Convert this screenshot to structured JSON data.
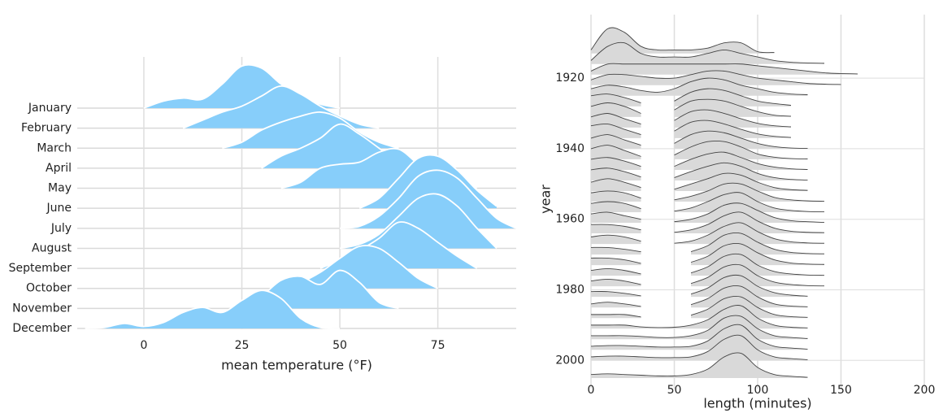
{
  "chart_data": [
    {
      "type": "ridgeline",
      "xlabel": "mean temperature (°F)",
      "categories": [
        "January",
        "February",
        "March",
        "April",
        "May",
        "June",
        "July",
        "August",
        "September",
        "October",
        "November",
        "December"
      ],
      "x": [
        -15,
        -10,
        -5,
        0,
        5,
        10,
        15,
        20,
        25,
        30,
        35,
        40,
        45,
        50,
        55,
        60,
        65,
        70,
        75,
        80,
        85,
        90,
        95
      ],
      "values": [
        [
          null,
          null,
          null,
          0,
          0.35,
          0.5,
          0.45,
          1.2,
          2.1,
          2.0,
          1.2,
          0.6,
          0.2,
          0,
          null,
          null,
          null,
          null,
          null,
          null,
          null,
          null,
          null
        ],
        [
          null,
          null,
          null,
          null,
          null,
          0,
          0.4,
          0.8,
          1.1,
          1.6,
          2.1,
          1.7,
          1.1,
          0.6,
          0.2,
          0,
          null,
          null,
          null,
          null,
          null,
          null,
          null
        ],
        [
          null,
          null,
          null,
          null,
          null,
          null,
          null,
          0,
          0.3,
          0.9,
          1.3,
          1.6,
          1.8,
          1.5,
          0.8,
          0.3,
          0,
          null,
          null,
          null,
          null,
          null,
          null
        ],
        [
          null,
          null,
          null,
          null,
          null,
          null,
          null,
          null,
          null,
          0,
          0.6,
          1.0,
          1.5,
          2.2,
          1.7,
          1.0,
          0.3,
          0,
          null,
          null,
          null,
          null,
          null
        ],
        [
          null,
          null,
          null,
          null,
          null,
          null,
          null,
          null,
          null,
          null,
          0,
          0.3,
          1.0,
          1.2,
          1.3,
          1.8,
          1.95,
          1.2,
          0.5,
          0.1,
          0,
          null,
          null
        ],
        [
          null,
          null,
          null,
          null,
          null,
          null,
          null,
          null,
          null,
          null,
          null,
          null,
          null,
          null,
          0,
          0.5,
          1.5,
          2.5,
          2.6,
          1.9,
          0.9,
          0.1,
          null
        ],
        [
          null,
          null,
          null,
          null,
          null,
          null,
          null,
          null,
          null,
          null,
          null,
          null,
          null,
          0,
          0.1,
          0.6,
          1.5,
          2.6,
          2.9,
          2.5,
          1.5,
          0.5,
          0
        ],
        [
          null,
          null,
          null,
          null,
          null,
          null,
          null,
          null,
          null,
          null,
          null,
          null,
          null,
          0,
          0.2,
          0.7,
          1.6,
          2.5,
          2.7,
          2.1,
          1.0,
          0,
          null
        ],
        [
          null,
          null,
          null,
          null,
          null,
          null,
          null,
          null,
          null,
          null,
          null,
          null,
          0,
          0.4,
          0.9,
          1.5,
          2.3,
          2.0,
          1.3,
          0.6,
          0,
          null,
          null
        ],
        [
          null,
          null,
          null,
          null,
          null,
          null,
          null,
          null,
          null,
          null,
          0,
          0.3,
          0.8,
          1.5,
          2.1,
          2.0,
          1.3,
          0.5,
          0,
          null,
          null,
          null,
          null
        ],
        [
          null,
          null,
          null,
          null,
          null,
          null,
          null,
          null,
          0,
          0.6,
          1.4,
          1.6,
          1.2,
          1.9,
          1.3,
          0.3,
          0,
          null,
          null,
          null,
          null,
          null,
          null
        ],
        [
          0,
          0.05,
          0.25,
          0.1,
          0.3,
          0.8,
          1.05,
          0.8,
          1.4,
          1.9,
          1.5,
          0.5,
          0.05,
          0,
          null,
          null,
          null,
          null,
          null,
          null,
          null,
          null,
          null
        ]
      ],
      "color": "#87cefa",
      "stroke": "#ffffff",
      "xlim": [
        -17,
        95
      ],
      "xticks": [
        0,
        25,
        50,
        75
      ],
      "grid": true
    },
    {
      "type": "ridgeline",
      "xlabel": "length (minutes)",
      "ylabel": "year",
      "y": [
        1913,
        1916,
        1919,
        1922,
        1925,
        1928,
        1931,
        1934,
        1937,
        1940,
        1943,
        1946,
        1949,
        1952,
        1955,
        1958,
        1961,
        1964,
        1967,
        1970,
        1973,
        1976,
        1979,
        1982,
        1985,
        1988,
        1991,
        1994,
        1997,
        2000,
        2005
      ],
      "x": [
        0,
        10,
        20,
        30,
        40,
        50,
        60,
        70,
        80,
        90,
        100,
        110,
        120,
        130,
        140,
        150,
        160
      ],
      "values": [
        [
          1,
          7,
          6,
          2,
          1,
          1,
          1,
          1.5,
          3,
          3,
          0.5,
          0.3,
          null,
          null,
          null,
          null,
          null
        ],
        [
          1,
          5,
          6,
          3,
          2,
          2,
          2,
          3,
          4,
          3,
          2,
          1,
          0.5,
          0.3,
          0.2,
          null,
          null
        ],
        [
          1,
          3,
          3,
          3,
          3,
          3,
          3,
          3,
          3,
          3,
          2.5,
          2,
          1.5,
          1,
          0.5,
          0.3,
          0.2
        ],
        [
          1.5,
          3,
          3,
          2.5,
          2,
          2,
          3,
          4,
          4,
          3,
          2,
          1.5,
          1,
          0.5,
          0.3,
          0.2,
          null
        ],
        [
          2,
          3,
          2.5,
          1.5,
          1,
          2,
          4,
          5,
          4.5,
          3,
          2,
          1,
          0.5,
          0.3,
          null,
          null,
          null
        ],
        [
          3,
          3.5,
          2.5,
          1,
          null,
          1.5,
          4,
          5,
          4.5,
          3,
          1.5,
          0.8,
          0.3,
          null,
          null,
          null,
          null
        ],
        [
          3,
          4,
          3,
          1,
          null,
          2,
          4.5,
          5,
          4.5,
          3,
          1.5,
          0.5,
          0.2,
          null,
          null,
          null,
          null
        ],
        [
          3,
          4,
          2.5,
          1,
          null,
          2,
          4.5,
          5,
          4,
          2.5,
          1.2,
          0.5,
          0.2,
          null,
          null,
          null,
          null
        ],
        [
          3.5,
          4,
          2.5,
          1,
          null,
          2,
          4.5,
          5,
          4,
          2.5,
          1.2,
          0.5,
          0.2,
          null,
          null,
          null,
          null
        ],
        [
          3,
          4,
          2.5,
          1,
          null,
          1.5,
          4,
          5,
          4.5,
          3,
          1.5,
          0.6,
          0.2,
          0.1,
          null,
          null,
          null
        ],
        [
          3,
          4,
          2.5,
          0.8,
          null,
          1.2,
          3.5,
          5,
          5,
          3.5,
          1.5,
          0.6,
          0.2,
          0.1,
          null,
          null,
          null
        ],
        [
          3,
          3.5,
          2.5,
          1,
          null,
          1,
          3,
          4.5,
          5,
          3.5,
          1.8,
          0.8,
          0.3,
          0.1,
          null,
          null,
          null
        ],
        [
          3,
          3.5,
          2.5,
          1,
          null,
          0.8,
          2.5,
          4,
          5,
          4,
          2,
          0.8,
          0.3,
          0.1,
          null,
          null,
          null
        ],
        [
          2.5,
          3.5,
          2.5,
          1,
          null,
          0.5,
          2,
          3.5,
          5,
          4.5,
          2.5,
          1,
          0.4,
          0.2,
          null,
          null,
          null
        ],
        [
          2.5,
          3,
          2.5,
          1,
          null,
          0.5,
          1.5,
          3,
          5,
          5,
          3,
          1.2,
          0.5,
          0.2,
          0.1,
          null,
          null
        ],
        [
          2.5,
          3,
          2.5,
          1,
          null,
          0.3,
          1.2,
          3,
          5,
          5.5,
          3,
          1.2,
          0.5,
          0.2,
          0.1,
          null,
          null
        ],
        [
          2.5,
          3,
          2,
          1,
          null,
          0.3,
          1,
          2.5,
          5,
          5.5,
          3.5,
          1.5,
          0.6,
          0.3,
          0.1,
          null,
          null
        ],
        [
          2.5,
          2.5,
          2,
          1,
          null,
          0.3,
          1,
          2.5,
          5,
          6,
          3.5,
          1.5,
          0.6,
          0.3,
          0.2,
          null,
          null
        ],
        [
          2,
          2.5,
          2,
          0.8,
          null,
          0.2,
          0.8,
          2.5,
          5,
          6,
          3.5,
          1.5,
          0.6,
          0.3,
          0.2,
          null,
          null
        ],
        [
          2,
          2,
          1.5,
          0.8,
          null,
          null,
          0.8,
          2.5,
          5.5,
          6,
          3.5,
          1.5,
          0.6,
          0.3,
          0.2,
          null,
          null
        ],
        [
          2,
          2,
          1.5,
          0.5,
          null,
          null,
          0.8,
          2.5,
          5.5,
          6,
          3.5,
          1.5,
          0.6,
          0.3,
          0.2,
          null,
          null
        ],
        [
          1.5,
          2,
          1.5,
          0.5,
          null,
          null,
          0.8,
          2.5,
          5.5,
          6,
          3,
          1.2,
          0.5,
          0.2,
          0.1,
          null,
          null
        ],
        [
          1.5,
          2,
          1.5,
          0.5,
          null,
          null,
          0.8,
          2.5,
          5.5,
          6,
          3,
          1.2,
          0.5,
          0.2,
          0.1,
          null,
          null
        ],
        [
          1.5,
          1.5,
          1,
          0.3,
          null,
          null,
          0.8,
          2.5,
          5.5,
          6,
          3,
          1.2,
          0.5,
          0.2,
          null,
          null,
          null
        ],
        [
          1,
          1.5,
          1,
          0.3,
          null,
          null,
          0.8,
          2.5,
          5.5,
          6,
          3,
          1,
          0.4,
          0.2,
          null,
          null,
          null
        ],
        [
          1,
          1,
          1,
          0.3,
          null,
          null,
          0.8,
          2.5,
          5.5,
          6,
          3,
          1,
          0.4,
          0.2,
          null,
          null,
          null
        ],
        [
          1,
          1,
          1,
          0.5,
          0.3,
          0.4,
          1,
          2.5,
          5.5,
          6.5,
          3,
          1,
          0.4,
          0.2,
          null,
          null,
          null
        ],
        [
          1,
          1,
          1,
          0.8,
          0.5,
          0.5,
          1,
          2.5,
          6,
          6.5,
          3,
          1,
          0.5,
          0.2,
          null,
          null,
          null
        ],
        [
          1,
          1.2,
          1.2,
          1,
          0.8,
          0.8,
          1,
          2.5,
          6,
          7,
          3,
          1,
          0.5,
          0.2,
          null,
          null,
          null
        ],
        [
          1,
          1.2,
          1.2,
          1,
          0.8,
          0.8,
          1,
          2.5,
          6,
          7,
          3,
          1,
          0.5,
          0.2,
          null,
          null,
          null
        ],
        [
          1,
          1.2,
          1,
          0.8,
          0.6,
          0.6,
          1,
          2.5,
          6,
          7,
          3,
          1,
          0.5,
          0.2,
          null,
          null,
          null
        ]
      ],
      "color": "#d9d9d9",
      "stroke": "#444444",
      "xlim": [
        0,
        200
      ],
      "xticks": [
        0,
        50,
        100,
        150,
        200
      ],
      "ylim": [
        2008,
        1902
      ],
      "yticks": [
        1920,
        1940,
        1960,
        1980,
        2000
      ],
      "grid": true
    }
  ]
}
